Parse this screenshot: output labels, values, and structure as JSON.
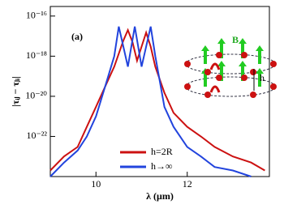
{
  "chart_data": {
    "type": "line",
    "title": "(a)",
    "xlabel": "λ (μm)",
    "ylabel": "|τᵢⱼ − τⱼᵢ|",
    "xlim": [
      9.0,
      13.8
    ],
    "xticks": [
      10,
      12
    ],
    "ylim": [
      1e-24,
      3e-16
    ],
    "log_y": true,
    "yticks": [
      {
        "value": 1e-16,
        "label": "10⁻¹⁶"
      },
      {
        "value": 1e-18,
        "label": "10⁻¹⁸"
      },
      {
        "value": 1e-20,
        "label": "10⁻²⁰"
      },
      {
        "value": 1e-22,
        "label": "10⁻²²"
      }
    ],
    "legend_position": "lower center",
    "series": [
      {
        "name": "h=2R",
        "color": "#cc1111",
        "x": [
          9.0,
          9.3,
          9.6,
          9.8,
          10.0,
          10.2,
          10.4,
          10.6,
          10.7,
          10.8,
          10.9,
          11.0,
          11.1,
          11.2,
          11.3,
          11.5,
          11.7,
          12.0,
          12.3,
          12.6,
          13.0,
          13.4,
          13.7
        ],
        "values": [
          2e-24,
          1e-23,
          3e-23,
          3e-22,
          3e-21,
          3e-20,
          3e-19,
          6e-18,
          2e-17,
          5e-18,
          6e-19,
          3e-18,
          1.5e-17,
          3e-18,
          3e-19,
          1.5e-20,
          1.5e-21,
          3e-22,
          1e-22,
          3e-23,
          1e-23,
          5e-24,
          2e-24
        ]
      },
      {
        "name": "h→∞",
        "color": "#2244dd",
        "x": [
          9.0,
          9.3,
          9.6,
          9.8,
          10.0,
          10.2,
          10.4,
          10.5,
          10.6,
          10.7,
          10.85,
          11.0,
          11.2,
          11.3,
          11.5,
          11.7,
          12.0,
          12.3,
          12.6,
          13.0,
          13.4
        ],
        "values": [
          1e-24,
          5e-24,
          2e-23,
          1e-22,
          1e-21,
          3e-20,
          1e-18,
          3e-17,
          3e-18,
          3e-19,
          3e-17,
          3e-19,
          3e-17,
          1e-18,
          3e-21,
          3e-22,
          3e-23,
          1e-23,
          3e-24,
          2e-24,
          1e-24
        ]
      }
    ],
    "inset_labels": [
      "B",
      "h"
    ]
  }
}
